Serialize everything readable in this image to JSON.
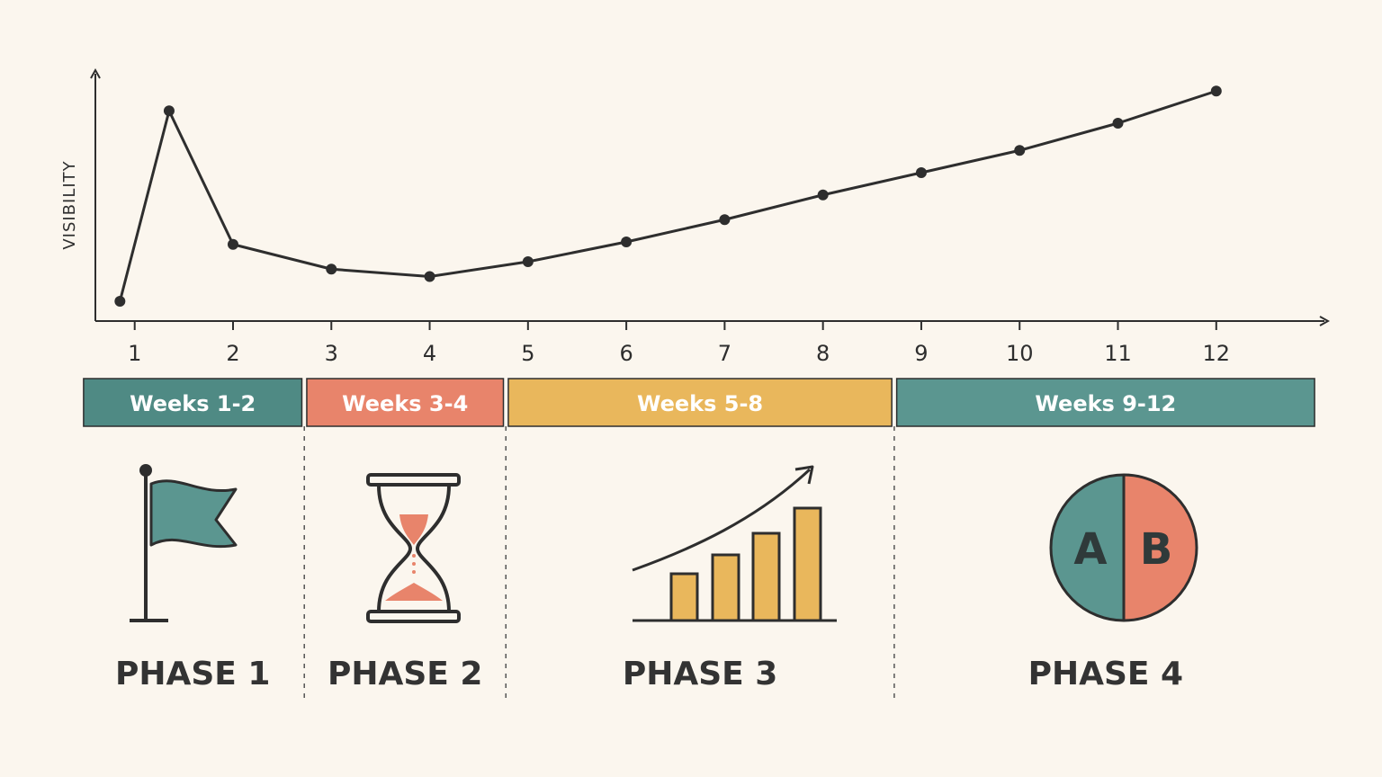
{
  "colors": {
    "background": "#fbf6ee",
    "line": "#2e2e2e",
    "teal": "#5b9690",
    "teal_dark": "#4f8a84",
    "coral": "#e8846b",
    "gold": "#e9b75c",
    "divider": "#555555"
  },
  "chart_data": {
    "type": "line",
    "ylabel": "VISIBILITY",
    "xlabel": "",
    "x_ticks": [
      1,
      2,
      3,
      4,
      5,
      6,
      7,
      8,
      9,
      10,
      11,
      12
    ],
    "xlim": [
      0.6,
      13.1
    ],
    "ylim": [
      0,
      100
    ],
    "grid": false,
    "series": [
      {
        "x": [
          0.85,
          1.35,
          2,
          3,
          4,
          5,
          6,
          7,
          8,
          9,
          10,
          11,
          12
        ],
        "y": [
          8,
          85,
          31,
          21,
          18,
          24,
          32,
          41,
          51,
          60,
          69,
          80,
          93
        ]
      }
    ]
  },
  "phases": [
    {
      "band_label": "Weeks 1-2",
      "band_color": "#4f8a84",
      "x_from": 0.48,
      "x_to": 2.7,
      "phase_label": "PHASE 1",
      "icon": "flag-icon"
    },
    {
      "band_label": "Weeks 3-4",
      "band_color": "#e8846b",
      "x_from": 2.75,
      "x_to": 4.75,
      "phase_label": "PHASE 2",
      "icon": "hourglass-icon"
    },
    {
      "band_label": "Weeks 5-8",
      "band_color": "#e9b75c",
      "x_from": 4.8,
      "x_to": 8.7,
      "phase_label": "PHASE 3",
      "icon": "growth-bar-chart-icon"
    },
    {
      "band_label": "Weeks 9-12",
      "band_color": "#5b9690",
      "x_from": 8.75,
      "x_to": 13.0,
      "phase_label": "PHASE 4",
      "icon": "ab-test-icon"
    }
  ],
  "ab_icon": {
    "left": "A",
    "right": "B"
  }
}
